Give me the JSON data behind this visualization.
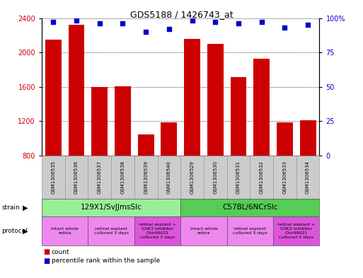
{
  "title": "GDS5188 / 1426743_at",
  "samples": [
    "GSM1306535",
    "GSM1306536",
    "GSM1306537",
    "GSM1306538",
    "GSM1306539",
    "GSM1306540",
    "GSM1306529",
    "GSM1306530",
    "GSM1306531",
    "GSM1306532",
    "GSM1306533",
    "GSM1306534"
  ],
  "counts": [
    2150,
    2320,
    1600,
    1610,
    1050,
    1190,
    2160,
    2100,
    1710,
    1930,
    1190,
    1210
  ],
  "percentiles": [
    97,
    98,
    96,
    96,
    90,
    92,
    98,
    97,
    96,
    97,
    93,
    95
  ],
  "bar_color": "#cc0000",
  "dot_color": "#0000cc",
  "ylim_left": [
    800,
    2400
  ],
  "ylim_right": [
    0,
    100
  ],
  "yticks_left": [
    800,
    1200,
    1600,
    2000,
    2400
  ],
  "yticks_right": [
    0,
    25,
    50,
    75,
    100
  ],
  "strain_groups": [
    {
      "label": "129X1/SvJJmsSlc",
      "start": 0,
      "end": 6,
      "color": "#99ee99"
    },
    {
      "label": "C57BL/6NCrSlc",
      "start": 6,
      "end": 12,
      "color": "#55cc55"
    }
  ],
  "protocol_groups": [
    {
      "label": "intact whole\nretina",
      "start": 0,
      "end": 2,
      "color": "#ee88ee"
    },
    {
      "label": "retinal explant\ncultured 3 days",
      "start": 2,
      "end": 4,
      "color": "#ee88ee"
    },
    {
      "label": "retinal explant +\nGSK3 inhibitor\nChir99021\ncultured 3 days",
      "start": 4,
      "end": 6,
      "color": "#dd55dd"
    },
    {
      "label": "intact whole\nretina",
      "start": 6,
      "end": 8,
      "color": "#ee88ee"
    },
    {
      "label": "retinal explant\ncultured 3 days",
      "start": 8,
      "end": 10,
      "color": "#ee88ee"
    },
    {
      "label": "retinal explant +\nGSK3 inhibitor\nChir99021\ncultured 3 days",
      "start": 10,
      "end": 12,
      "color": "#dd55dd"
    }
  ]
}
